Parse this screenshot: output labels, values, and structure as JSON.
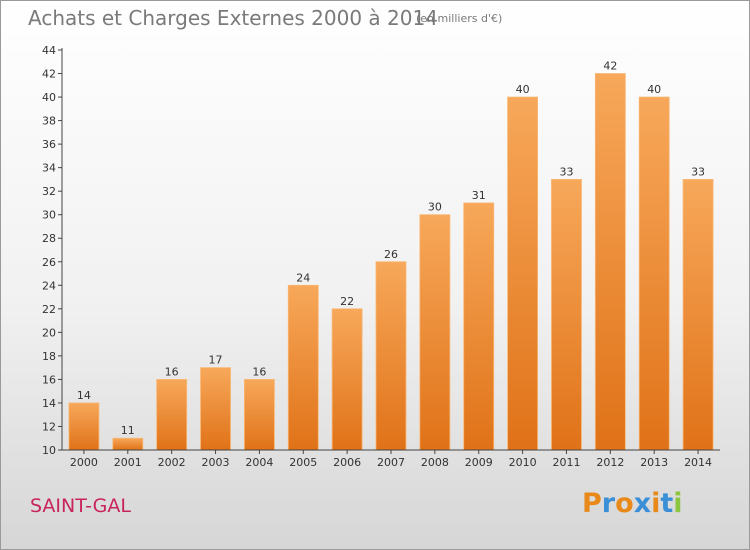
{
  "header": {
    "title": "Achats et Charges Externes 2000 à 2014",
    "unit": "(en milliers d'€)"
  },
  "footer": {
    "commune": "SAINT-GAL",
    "logo": "Proxiti"
  },
  "colors": {
    "bar_top": "#f7a85a",
    "bar_bottom": "#e07218",
    "bar_edge": "#f9b774",
    "title": "#7a7a7a",
    "commune": "#c8245c",
    "logo_letters": [
      "#e8891a",
      "#3a8fd6",
      "#e8891a",
      "#3a8fd6",
      "#e8891a",
      "#3a8fd6",
      "#8cc63e"
    ]
  },
  "chart_data": {
    "type": "bar",
    "title": "Achats et Charges Externes 2000 à 2014",
    "subtitle": "(en milliers d'€)",
    "categories": [
      "2000",
      "2001",
      "2002",
      "2003",
      "2004",
      "2005",
      "2006",
      "2007",
      "2008",
      "2009",
      "2010",
      "2011",
      "2012",
      "2013",
      "2014"
    ],
    "values": [
      14,
      11,
      16,
      17,
      16,
      24,
      22,
      26,
      30,
      31,
      40,
      33,
      42,
      40,
      33
    ],
    "ylim": [
      10,
      44
    ],
    "yticks": [
      10,
      12,
      14,
      16,
      18,
      20,
      22,
      24,
      26,
      28,
      30,
      32,
      34,
      36,
      38,
      40,
      42,
      44
    ],
    "grid": false,
    "data_labels": true
  }
}
